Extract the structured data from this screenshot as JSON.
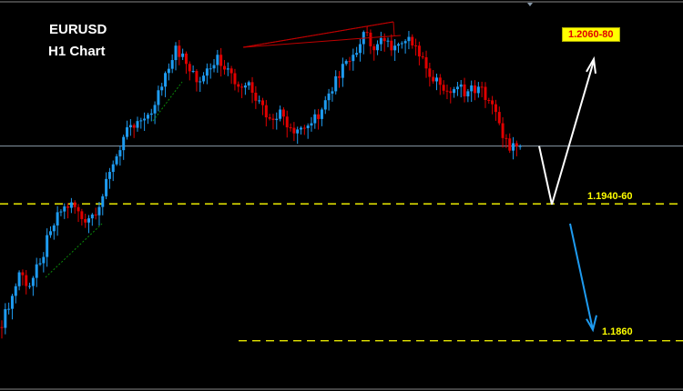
{
  "chart_data": {
    "type": "candlestick",
    "title": "EURUSD",
    "subtitle": "H1 Chart",
    "ylim": [
      1.1827,
      1.2084
    ],
    "grid": false,
    "closes": [
      1.1869,
      1.1881,
      1.1905,
      1.1896,
      1.1911,
      1.1932,
      1.1945,
      1.1951,
      1.194,
      1.1943,
      1.1955,
      1.1976,
      1.1994,
      1.2,
      1.2006,
      1.2015,
      1.2036,
      1.2054,
      1.2042,
      1.203,
      1.2039,
      1.2048,
      1.2039,
      1.2027,
      1.203,
      1.2018,
      1.2006,
      1.2012,
      1.2,
      1.2,
      1.2003,
      1.2012,
      1.2024,
      1.2042,
      1.2048,
      1.2063,
      1.2051,
      1.2057,
      1.2054,
      1.2057,
      1.2054,
      1.2039,
      1.2033,
      1.2024,
      1.2027,
      1.2024,
      1.2027,
      1.2018,
      1.2003,
      1.1985,
      1.1988
    ],
    "colors": {
      "up": "#1e9bf0",
      "down": "#e00000",
      "background": "#000000"
    },
    "current_price_line": 1.1988,
    "levels": [
      {
        "label": "1.1940-60",
        "price": 1.195,
        "color": "#ffff00"
      },
      {
        "label": "1.1860",
        "price": 1.186,
        "color": "#ffff00"
      }
    ],
    "target_label": "1.2060-80",
    "projections": [
      {
        "name": "bullish",
        "color": "#ffffff",
        "path": [
          1.1988,
          1.1952,
          1.2044
        ]
      },
      {
        "name": "bearish",
        "color": "#1e9bf0",
        "path": [
          1.1937,
          1.1866
        ]
      }
    ]
  }
}
